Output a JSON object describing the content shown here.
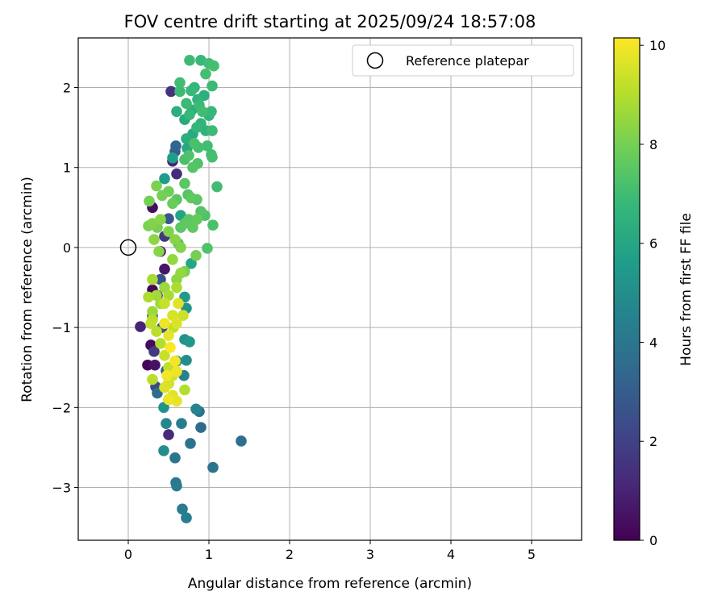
{
  "chart_data": {
    "type": "scatter",
    "title": "FOV centre drift starting at 2025/09/24 18:57:08",
    "xlabel": "Angular distance from reference (arcmin)",
    "ylabel": "Rotation from reference (arcmin)",
    "xlim": [
      -0.62,
      5.62
    ],
    "ylim": [
      -3.66,
      2.62
    ],
    "xticks": [
      0,
      1,
      2,
      3,
      4,
      5
    ],
    "yticks": [
      -3,
      -2,
      -1,
      0,
      1,
      2
    ],
    "xtick_labels": [
      "0",
      "1",
      "2",
      "3",
      "4",
      "5"
    ],
    "ytick_labels": [
      "−3",
      "−2",
      "−1",
      "0",
      "1",
      "2"
    ],
    "grid": true,
    "legend": {
      "position": "top-right",
      "entries": [
        "Reference platepar"
      ]
    },
    "reference_point": {
      "x": 0,
      "y": 0
    },
    "colorbar": {
      "label": "Hours from first FF file",
      "range": [
        0,
        10.15
      ],
      "ticks": [
        0,
        2,
        4,
        6,
        8,
        10
      ],
      "tick_labels": [
        "0",
        "2",
        "4",
        "6",
        "8",
        "10"
      ],
      "colormap": "viridis",
      "stops": [
        "#440154",
        "#482878",
        "#3e4989",
        "#31688e",
        "#26828e",
        "#1f9e89",
        "#35b779",
        "#6ece58",
        "#b5de2b",
        "#fde725"
      ]
    },
    "points": [
      [
        0.24,
        -1.47,
        0.1
      ],
      [
        0.28,
        -1.22,
        0.3
      ],
      [
        0.33,
        -1.47,
        0.5
      ],
      [
        0.15,
        -0.99,
        1.0
      ],
      [
        0.3,
        -0.53,
        0.2
      ],
      [
        0.36,
        -0.6,
        0.8
      ],
      [
        0.5,
        -2.34,
        1.2
      ],
      [
        0.53,
        1.95,
        1.5
      ],
      [
        0.32,
        -1.3,
        1.7
      ],
      [
        0.45,
        -0.27,
        0.6
      ],
      [
        0.55,
        1.08,
        1.0
      ],
      [
        0.6,
        0.92,
        1.3
      ],
      [
        0.3,
        0.5,
        0.4
      ],
      [
        0.4,
        -0.05,
        0.9
      ],
      [
        0.45,
        0.14,
        1.6
      ],
      [
        0.5,
        -1.7,
        2.0
      ],
      [
        0.34,
        -1.74,
        2.2
      ],
      [
        0.42,
        -1.0,
        2.4
      ],
      [
        0.3,
        -0.86,
        2.5
      ],
      [
        0.4,
        -0.4,
        2.6
      ],
      [
        0.5,
        0.36,
        2.8
      ],
      [
        0.58,
        1.2,
        3.0
      ],
      [
        0.59,
        1.27,
        3.3
      ],
      [
        0.47,
        -1.54,
        3.2
      ],
      [
        0.36,
        -1.82,
        3.5
      ],
      [
        0.88,
        -2.05,
        3.8
      ],
      [
        0.9,
        -2.25,
        3.5
      ],
      [
        0.77,
        -2.45,
        3.9
      ],
      [
        1.4,
        -2.42,
        3.7
      ],
      [
        1.05,
        -2.75,
        3.9
      ],
      [
        0.58,
        -2.63,
        4.0
      ],
      [
        0.59,
        -2.94,
        4.1
      ],
      [
        0.6,
        -2.98,
        4.2
      ],
      [
        0.67,
        -3.27,
        4.2
      ],
      [
        0.72,
        -3.38,
        4.3
      ],
      [
        0.47,
        -2.2,
        4.7
      ],
      [
        0.44,
        -2.54,
        4.9
      ],
      [
        0.66,
        -2.2,
        4.4
      ],
      [
        0.84,
        -2.02,
        4.6
      ],
      [
        0.72,
        -1.41,
        5.0
      ],
      [
        0.7,
        -1.15,
        5.1
      ],
      [
        0.76,
        -1.18,
        5.3
      ],
      [
        0.72,
        -0.76,
        5.2
      ],
      [
        0.7,
        -0.62,
        5.4
      ],
      [
        0.69,
        -1.6,
        4.5
      ],
      [
        0.6,
        -1.42,
        4.8
      ],
      [
        0.45,
        0.86,
        5.6
      ],
      [
        0.44,
        -2.0,
        5.2
      ],
      [
        0.5,
        -1.9,
        5.5
      ],
      [
        0.55,
        1.12,
        5.7
      ],
      [
        0.65,
        0.4,
        5.9
      ],
      [
        0.78,
        -0.2,
        6.0
      ],
      [
        0.73,
        1.24,
        6.1
      ],
      [
        0.7,
        1.6,
        6.2
      ],
      [
        0.6,
        1.7,
        6.3
      ],
      [
        0.79,
        1.72,
        6.4
      ],
      [
        0.86,
        1.85,
        6.5
      ],
      [
        0.94,
        1.9,
        6.4
      ],
      [
        1.0,
        1.65,
        6.6
      ],
      [
        0.96,
        1.46,
        6.5
      ],
      [
        0.8,
        1.42,
        6.2
      ],
      [
        0.72,
        1.36,
        6.3
      ],
      [
        0.85,
        1.5,
        6.7
      ],
      [
        0.9,
        1.55,
        6.6
      ],
      [
        0.76,
        1.66,
        6.8
      ],
      [
        0.72,
        1.8,
        6.9
      ],
      [
        0.78,
        1.96,
        6.8
      ],
      [
        0.82,
        2.0,
        6.7
      ],
      [
        0.88,
        1.78,
        6.9
      ],
      [
        0.92,
        1.7,
        7.0
      ],
      [
        1.04,
        1.46,
        6.9
      ],
      [
        0.98,
        1.27,
        7.0
      ],
      [
        1.03,
        1.16,
        7.0
      ],
      [
        1.04,
        1.13,
        7.1
      ],
      [
        1.03,
        1.7,
        6.8
      ],
      [
        0.96,
        2.17,
        7.1
      ],
      [
        1.0,
        2.3,
        7.0
      ],
      [
        1.06,
        2.27,
        7.1
      ],
      [
        1.04,
        2.02,
        6.9
      ],
      [
        0.9,
        2.34,
        6.8
      ],
      [
        0.76,
        2.34,
        6.9
      ],
      [
        0.64,
        2.06,
        7.0
      ],
      [
        0.64,
        1.95,
        6.9
      ],
      [
        0.82,
        1.3,
        7.2
      ],
      [
        0.87,
        1.25,
        7.1
      ],
      [
        0.75,
        1.15,
        7.3
      ],
      [
        0.7,
        1.1,
        7.2
      ],
      [
        0.8,
        1.0,
        7.4
      ],
      [
        0.86,
        1.05,
        7.3
      ],
      [
        0.7,
        0.8,
        7.5
      ],
      [
        0.74,
        0.66,
        7.4
      ],
      [
        0.78,
        0.62,
        7.6
      ],
      [
        0.85,
        0.6,
        7.5
      ],
      [
        0.9,
        0.45,
        7.4
      ],
      [
        0.95,
        0.4,
        7.3
      ],
      [
        1.1,
        0.76,
        7.0
      ],
      [
        1.05,
        0.28,
        7.2
      ],
      [
        0.98,
        -0.01,
        7.3
      ],
      [
        0.8,
        0.25,
        7.6
      ],
      [
        0.85,
        0.35,
        7.7
      ],
      [
        0.75,
        0.35,
        7.5
      ],
      [
        0.7,
        0.3,
        7.6
      ],
      [
        0.65,
        0.25,
        7.5
      ],
      [
        0.62,
        0.05,
        7.4
      ],
      [
        0.6,
        0.6,
        7.5
      ],
      [
        0.55,
        0.55,
        7.8
      ],
      [
        0.5,
        0.7,
        7.9
      ],
      [
        0.42,
        0.65,
        8.0
      ],
      [
        0.35,
        0.77,
        8.1
      ],
      [
        0.26,
        0.58,
        8.0
      ],
      [
        0.3,
        0.3,
        8.2
      ],
      [
        0.36,
        0.25,
        8.0
      ],
      [
        0.4,
        0.35,
        8.3
      ],
      [
        0.25,
        0.27,
        8.1
      ],
      [
        0.32,
        0.1,
        8.4
      ],
      [
        0.38,
        -0.05,
        8.3
      ],
      [
        0.5,
        0.2,
        8.2
      ],
      [
        0.58,
        0.1,
        8.3
      ],
      [
        0.65,
        0.0,
        8.2
      ],
      [
        0.7,
        -0.3,
        8.1
      ],
      [
        0.6,
        -0.4,
        8.4
      ],
      [
        0.55,
        -0.15,
        8.5
      ],
      [
        0.45,
        -0.5,
        8.6
      ],
      [
        0.35,
        -0.6,
        8.7
      ],
      [
        0.3,
        -0.4,
        8.8
      ],
      [
        0.25,
        -0.62,
        8.9
      ],
      [
        0.3,
        -0.8,
        8.6
      ],
      [
        0.4,
        -0.7,
        8.7
      ],
      [
        0.5,
        -0.6,
        8.8
      ],
      [
        0.6,
        -0.5,
        8.9
      ],
      [
        0.65,
        -0.32,
        8.5
      ],
      [
        0.84,
        -0.1,
        8.0
      ],
      [
        0.3,
        -0.9,
        9.0
      ],
      [
        0.35,
        -1.05,
        9.1
      ],
      [
        0.28,
        -0.95,
        9.2
      ],
      [
        0.4,
        -1.2,
        9.0
      ],
      [
        0.45,
        -1.35,
        9.3
      ],
      [
        0.5,
        -1.5,
        9.2
      ],
      [
        0.55,
        -1.6,
        9.4
      ],
      [
        0.5,
        -1.7,
        9.5
      ],
      [
        0.45,
        -1.75,
        9.6
      ],
      [
        0.3,
        -1.65,
        9.1
      ],
      [
        0.55,
        -1.85,
        9.7
      ],
      [
        0.6,
        -1.92,
        9.8
      ],
      [
        0.5,
        -1.9,
        9.9
      ],
      [
        0.7,
        -1.78,
        9.0
      ],
      [
        0.55,
        -0.85,
        9.5
      ],
      [
        0.6,
        -0.95,
        9.6
      ],
      [
        0.62,
        -0.7,
        9.7
      ],
      [
        0.68,
        -0.85,
        9.4
      ],
      [
        0.5,
        -1.1,
        9.8
      ],
      [
        0.45,
        -0.95,
        9.9
      ],
      [
        0.58,
        -1.42,
        10.0
      ],
      [
        0.52,
        -1.25,
        10.1
      ],
      [
        0.48,
        -1.6,
        10.0
      ],
      [
        0.6,
        -1.55,
        9.9
      ],
      [
        0.45,
        -0.7,
        9.3
      ],
      [
        0.56,
        -1.0,
        9.2
      ]
    ]
  }
}
